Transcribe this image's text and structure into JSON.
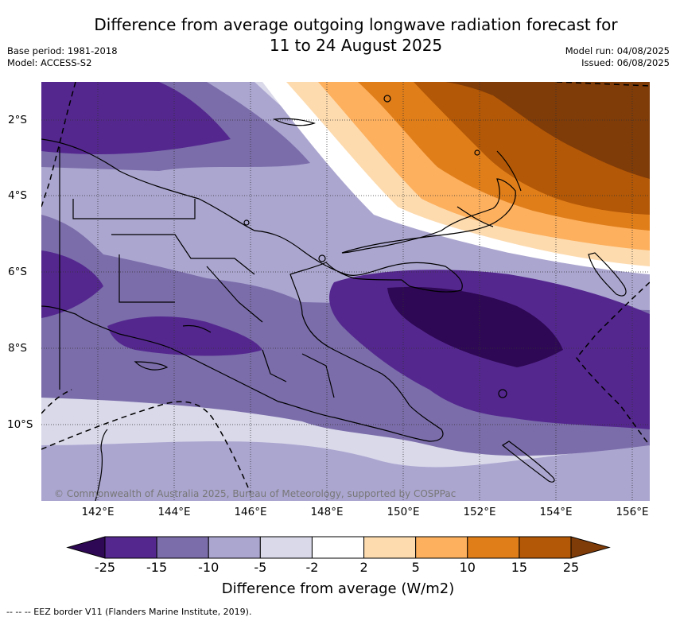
{
  "title_line1": "Difference from average outgoing longwave radiation forecast for",
  "title_line2": "11 to 24 August 2025",
  "base_period": "Base period: 1981-2018",
  "model": "Model: ACCESS-S2",
  "model_run": "Model run: 04/08/2025",
  "issued": "Issued: 06/08/2025",
  "copyright": "© Commonwealth of Australia 2025, Bureau of Meteorology, supported by COSPPac",
  "lat_ticks": [
    "2°S",
    "4°S",
    "6°S",
    "8°S",
    "10°S"
  ],
  "lon_ticks": [
    "142°E",
    "144°E",
    "146°E",
    "148°E",
    "150°E",
    "152°E",
    "154°E",
    "156°E"
  ],
  "colorbar": {
    "labels": [
      "-25",
      "-15",
      "-10",
      "-5",
      "-2",
      "2",
      "5",
      "10",
      "15",
      "25"
    ],
    "colors": [
      "#2e0854",
      "#54278f",
      "#7b6daa",
      "#aba6d0",
      "#d9d9ea",
      "#ffffff",
      "#fddbaf",
      "#fdb05e",
      "#e07e1a",
      "#b35806",
      "#7f3b08"
    ],
    "title": "Difference from average (W/m2)"
  },
  "footnote": "--  --  -- EEZ border V11 (Flanders Marine Institute, 2019).",
  "map_extent": {
    "lon_min": 141,
    "lon_max": 156.5,
    "lat_min": -12,
    "lat_max": -1
  }
}
